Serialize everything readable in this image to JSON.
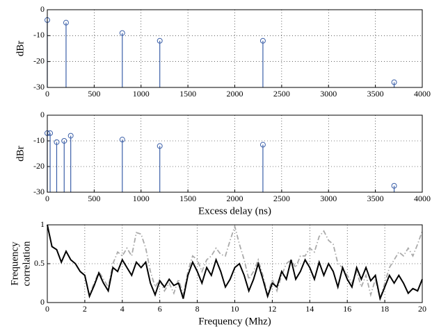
{
  "chart_data": [
    {
      "type": "stem",
      "ylabel": "dBr",
      "color": "#3b5fa8",
      "x": [
        0,
        200,
        800,
        1200,
        2300,
        3700
      ],
      "values": [
        -4,
        -5,
        -9,
        -12,
        -12,
        -28
      ],
      "xlim": [
        0,
        4000
      ],
      "xticks": [
        0,
        500,
        1000,
        1500,
        2000,
        2500,
        3000,
        3500,
        4000
      ],
      "ylim": [
        -30,
        0
      ],
      "yticks": [
        0,
        -10,
        -20,
        -30
      ],
      "grid": true
    },
    {
      "type": "stem",
      "ylabel": "dBr",
      "xlabel": "Excess delay (ns)",
      "color": "#3b5fa8",
      "x": [
        0,
        30,
        100,
        180,
        250,
        800,
        1200,
        2300,
        3700
      ],
      "values": [
        -7,
        -7,
        -10.5,
        -10,
        -8,
        -9.5,
        -12,
        -11.5,
        -27.5
      ],
      "xlim": [
        0,
        4000
      ],
      "xticks": [
        0,
        500,
        1000,
        1500,
        2000,
        2500,
        3000,
        3500,
        4000
      ],
      "ylim": [
        -30,
        0
      ],
      "yticks": [
        0,
        -10,
        -20,
        -30
      ],
      "grid": true
    },
    {
      "type": "line",
      "ylabel": [
        "Frequency",
        "correlation"
      ],
      "xlabel": "Frequency (Mhz)",
      "x": [
        0,
        0.25,
        0.5,
        0.75,
        1,
        1.25,
        1.5,
        1.75,
        2,
        2.25,
        2.5,
        2.75,
        3,
        3.25,
        3.5,
        3.75,
        4,
        4.25,
        4.5,
        4.75,
        5,
        5.25,
        5.5,
        5.75,
        6,
        6.25,
        6.5,
        6.75,
        7,
        7.25,
        7.5,
        7.75,
        8,
        8.25,
        8.5,
        8.75,
        9,
        9.25,
        9.5,
        9.75,
        10,
        10.25,
        10.5,
        10.75,
        11,
        11.25,
        11.5,
        11.75,
        12,
        12.25,
        12.5,
        12.75,
        13,
        13.25,
        13.5,
        13.75,
        14,
        14.25,
        14.5,
        14.75,
        15,
        15.25,
        15.5,
        15.75,
        16,
        16.25,
        16.5,
        16.75,
        17,
        17.25,
        17.5,
        17.75,
        18,
        18.25,
        18.5,
        18.75,
        19,
        19.25,
        19.5,
        19.75,
        20
      ],
      "series": [
        {
          "color": "#aaaaaa",
          "dash": "dashdot",
          "values": [
            1,
            0.72,
            0.68,
            0.52,
            0.66,
            0.55,
            0.5,
            0.4,
            0.35,
            0.1,
            0.25,
            0.4,
            0.3,
            0.2,
            0.5,
            0.65,
            0.6,
            0.7,
            0.6,
            0.9,
            0.88,
            0.7,
            0.4,
            0.2,
            0.3,
            0.15,
            0.25,
            0.12,
            0.3,
            0.1,
            0.4,
            0.6,
            0.55,
            0.4,
            0.55,
            0.6,
            0.7,
            0.62,
            0.6,
            0.8,
            0.98,
            0.75,
            0.55,
            0.3,
            0.4,
            0.55,
            0.35,
            0.1,
            0.3,
            0.15,
            0.35,
            0.5,
            0.55,
            0.45,
            0.6,
            0.6,
            0.7,
            0.65,
            0.85,
            0.92,
            0.8,
            0.75,
            0.5,
            0.45,
            0.35,
            0.25,
            0.4,
            0.2,
            0.35,
            0.1,
            0.3,
            0.05,
            0.25,
            0.45,
            0.55,
            0.65,
            0.6,
            0.7,
            0.6,
            0.75,
            0.92
          ]
        },
        {
          "color": "#000000",
          "dash": "solid",
          "values": [
            1,
            0.72,
            0.68,
            0.52,
            0.66,
            0.55,
            0.5,
            0.4,
            0.35,
            0.08,
            0.22,
            0.38,
            0.25,
            0.15,
            0.45,
            0.4,
            0.55,
            0.45,
            0.35,
            0.52,
            0.45,
            0.52,
            0.25,
            0.1,
            0.28,
            0.2,
            0.3,
            0.22,
            0.25,
            0.05,
            0.35,
            0.52,
            0.4,
            0.25,
            0.45,
            0.35,
            0.55,
            0.4,
            0.2,
            0.3,
            0.45,
            0.5,
            0.35,
            0.15,
            0.3,
            0.5,
            0.3,
            0.08,
            0.25,
            0.2,
            0.4,
            0.3,
            0.55,
            0.3,
            0.4,
            0.55,
            0.45,
            0.3,
            0.52,
            0.35,
            0.5,
            0.4,
            0.2,
            0.45,
            0.3,
            0.2,
            0.45,
            0.3,
            0.45,
            0.28,
            0.35,
            0.05,
            0.2,
            0.35,
            0.25,
            0.35,
            0.25,
            0.12,
            0.18,
            0.15,
            0.3
          ]
        }
      ],
      "xlim": [
        0,
        20
      ],
      "xticks": [
        0,
        2,
        4,
        6,
        8,
        10,
        12,
        14,
        16,
        18,
        20
      ],
      "ylim": [
        0,
        1
      ],
      "yticks": [
        0,
        0.5,
        1
      ],
      "grid": true
    }
  ]
}
